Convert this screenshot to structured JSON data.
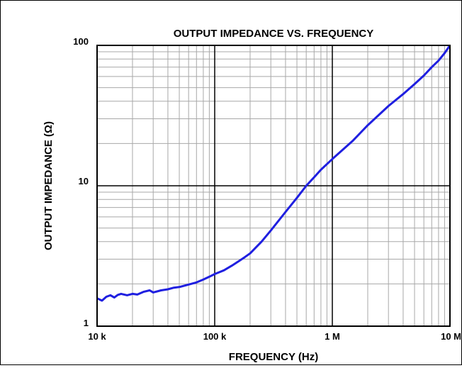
{
  "chart_data": {
    "type": "line",
    "title": "OUTPUT IMPEDANCE VS. FREQUENCY",
    "xlabel": "FREQUENCY (Hz)",
    "ylabel": "OUTPUT IMPEDANCE (Ω)",
    "x_scale": "log",
    "y_scale": "log",
    "xlim": [
      10000,
      10000000
    ],
    "ylim": [
      1,
      100
    ],
    "grid": true,
    "x_ticks": [
      {
        "value": 10000,
        "label": "10 k"
      },
      {
        "value": 100000,
        "label": "100 k"
      },
      {
        "value": 1000000,
        "label": "1 M"
      },
      {
        "value": 10000000,
        "label": "10 M"
      }
    ],
    "y_ticks": [
      {
        "value": 1,
        "label": "1"
      },
      {
        "value": 10,
        "label": "10"
      },
      {
        "value": 100,
        "label": "100"
      }
    ],
    "line_color": "#1f1fe0",
    "series": [
      {
        "x": [
          10000,
          11000,
          12000,
          13000,
          14000,
          15000,
          16000,
          18000,
          20000,
          22000,
          25000,
          28000,
          30000,
          35000,
          40000,
          45000,
          50000,
          60000,
          70000,
          80000,
          90000,
          100000,
          120000,
          140000,
          160000,
          180000,
          200000,
          250000,
          300000,
          400000,
          500000,
          600000,
          700000,
          800000,
          1000000,
          1500000,
          2000000,
          3000000,
          4000000,
          5000000,
          6000000,
          7000000,
          8000000,
          9000000,
          10000000
        ],
        "y": [
          1.58,
          1.52,
          1.62,
          1.66,
          1.6,
          1.67,
          1.7,
          1.66,
          1.7,
          1.68,
          1.76,
          1.8,
          1.74,
          1.8,
          1.83,
          1.88,
          1.9,
          1.98,
          2.05,
          2.15,
          2.25,
          2.35,
          2.5,
          2.7,
          2.9,
          3.1,
          3.3,
          4.0,
          4.8,
          6.5,
          8.2,
          10.0,
          11.5,
          13.0,
          15.5,
          21.0,
          27.0,
          37.0,
          45.0,
          53.0,
          61.0,
          70.0,
          78.0,
          88.0,
          100.0
        ]
      }
    ]
  }
}
